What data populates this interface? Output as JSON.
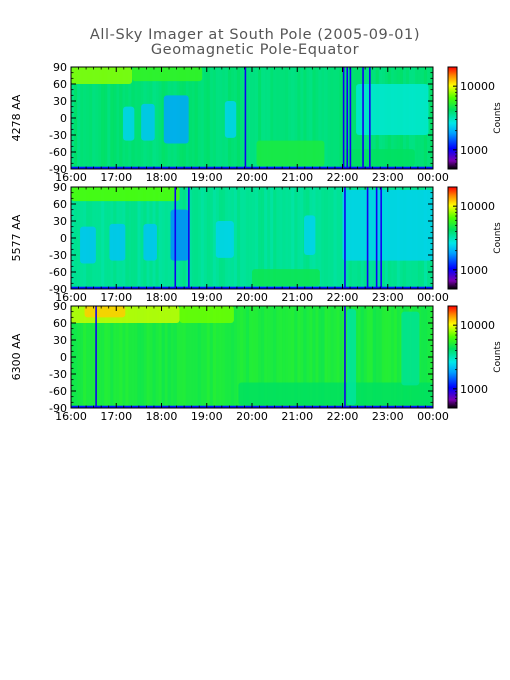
{
  "title": "All-Sky Imager at South Pole (2005-09-01)",
  "subtitle": "Geomagnetic Pole-Equator",
  "chart_data": [
    {
      "type": "heatmap",
      "ylabel": "4278 AA",
      "x_ticks": [
        "16:00",
        "17:00",
        "18:00",
        "19:00",
        "20:00",
        "21:00",
        "22:00",
        "23:00",
        "00:00"
      ],
      "y_ticks": [
        90,
        60,
        30,
        0,
        -30,
        -60,
        -90
      ],
      "ylim": [
        -90,
        90
      ],
      "colorbar": {
        "label": "Counts",
        "scale": "log",
        "range": [
          500,
          20000
        ],
        "tick_labels": [
          "10000",
          "1000"
        ],
        "tick_values": [
          10000,
          1000
        ]
      },
      "patches": [
        {
          "x": [
            16.0,
            17.35
          ],
          "y": [
            60,
            90
          ],
          "level": 0.74
        },
        {
          "x": [
            17.35,
            18.9
          ],
          "y": [
            65,
            90
          ],
          "level": 0.66
        },
        {
          "x": [
            17.15,
            17.4
          ],
          "y": [
            -40,
            20
          ],
          "level": 0.42
        },
        {
          "x": [
            17.55,
            17.85
          ],
          "y": [
            -40,
            25
          ],
          "level": 0.4
        },
        {
          "x": [
            18.05,
            18.6
          ],
          "y": [
            -45,
            40
          ],
          "level": 0.36
        },
        {
          "x": [
            19.4,
            19.65
          ],
          "y": [
            -35,
            30
          ],
          "level": 0.42
        },
        {
          "x": [
            20.1,
            21.6
          ],
          "y": [
            -85,
            -40
          ],
          "level": 0.62
        },
        {
          "x": [
            22.0,
            23.6
          ],
          "y": [
            -85,
            -55
          ],
          "level": 0.58
        },
        {
          "x": [
            22.3,
            23.9
          ],
          "y": [
            -30,
            60
          ],
          "level": 0.47
        }
      ],
      "dark_lines": [
        19.85,
        22.02,
        22.1,
        22.17,
        22.45,
        22.6
      ]
    },
    {
      "type": "heatmap",
      "ylabel": "5577 AA",
      "x_ticks": [
        "16:00",
        "17:00",
        "18:00",
        "19:00",
        "20:00",
        "21:00",
        "22:00",
        "23:00",
        "00:00"
      ],
      "y_ticks": [
        90,
        60,
        30,
        0,
        -30,
        -60,
        -90
      ],
      "ylim": [
        -90,
        90
      ],
      "colorbar": {
        "label": "Counts",
        "scale": "log",
        "range": [
          500,
          20000
        ],
        "tick_labels": [
          "10000",
          "1000"
        ],
        "tick_values": [
          10000,
          1000
        ]
      },
      "patches": [
        {
          "x": [
            16.0,
            18.4
          ],
          "y": [
            65,
            90
          ],
          "level": 0.7
        },
        {
          "x": [
            16.2,
            16.55
          ],
          "y": [
            -45,
            20
          ],
          "level": 0.4
        },
        {
          "x": [
            16.85,
            17.2
          ],
          "y": [
            -40,
            25
          ],
          "level": 0.4
        },
        {
          "x": [
            17.6,
            17.9
          ],
          "y": [
            -40,
            25
          ],
          "level": 0.4
        },
        {
          "x": [
            18.2,
            18.6
          ],
          "y": [
            -40,
            50
          ],
          "level": 0.33
        },
        {
          "x": [
            19.2,
            19.6
          ],
          "y": [
            -35,
            30
          ],
          "level": 0.42
        },
        {
          "x": [
            21.15,
            21.4
          ],
          "y": [
            -30,
            40
          ],
          "level": 0.42
        },
        {
          "x": [
            22.0,
            24.0
          ],
          "y": [
            -40,
            85
          ],
          "level": 0.42
        },
        {
          "x": [
            20.0,
            21.5
          ],
          "y": [
            -85,
            -55
          ],
          "level": 0.6
        }
      ],
      "dark_lines": [
        18.3,
        18.6,
        22.05,
        22.55,
        22.75,
        22.85
      ]
    },
    {
      "type": "heatmap",
      "ylabel": "6300 AA",
      "x_ticks": [
        "16:00",
        "17:00",
        "18:00",
        "19:00",
        "20:00",
        "21:00",
        "22:00",
        "23:00",
        "00:00"
      ],
      "y_ticks": [
        90,
        60,
        30,
        0,
        -30,
        -60,
        -90
      ],
      "ylim": [
        -90,
        90
      ],
      "colorbar": {
        "label": "Counts",
        "scale": "log",
        "range": [
          500,
          20000
        ],
        "tick_labels": [
          "10000",
          "1000"
        ],
        "tick_values": [
          10000,
          1000
        ]
      },
      "patches": [
        {
          "x": [
            16.0,
            18.4
          ],
          "y": [
            60,
            90
          ],
          "level": 0.78
        },
        {
          "x": [
            16.3,
            17.2
          ],
          "y": [
            70,
            90
          ],
          "level": 0.86
        },
        {
          "x": [
            18.4,
            19.6
          ],
          "y": [
            60,
            90
          ],
          "level": 0.72
        },
        {
          "x": [
            19.7,
            24.0
          ],
          "y": [
            -85,
            -45
          ],
          "level": 0.58
        },
        {
          "x": [
            22.1,
            22.3
          ],
          "y": [
            -85,
            85
          ],
          "level": 0.52
        },
        {
          "x": [
            23.3,
            23.7
          ],
          "y": [
            -50,
            80
          ],
          "level": 0.53
        }
      ],
      "dark_lines": [
        16.55,
        22.05
      ]
    }
  ]
}
